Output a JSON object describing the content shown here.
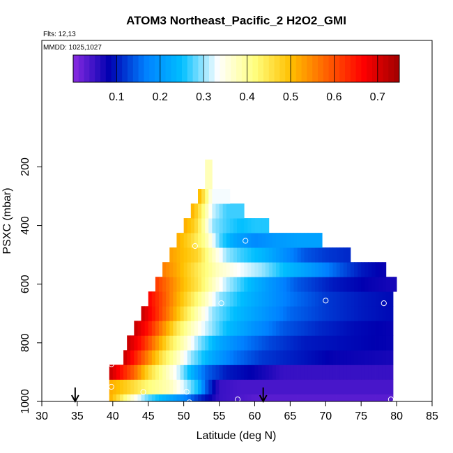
{
  "chart_data": {
    "type": "heatmap",
    "title": "ATOM3 Northeast_Pacific_2 H2O2_GMI",
    "annotations": [
      "Flts: 12,13",
      "MMDD: 1025,1027"
    ],
    "xlabel": "Latitude (deg N)",
    "ylabel": "PSXC (mbar)",
    "xlim": [
      30,
      85
    ],
    "ylim": [
      1000,
      0
    ],
    "x_ticks": [
      "30",
      "35",
      "40",
      "45",
      "50",
      "55",
      "60",
      "65",
      "70",
      "75",
      "80",
      "85"
    ],
    "y_ticks": [
      "200",
      "400",
      "600",
      "800",
      "1000"
    ],
    "colorbar": {
      "min": 0.0,
      "max": 0.75,
      "ticks": [
        "0.1",
        "0.2",
        "0.3",
        "0.4",
        "0.5",
        "0.6",
        "0.7"
      ],
      "colors": [
        "#8a2be2",
        "#0000b0",
        "#0080ff",
        "#00bfff",
        "#ffffff",
        "#ffff80",
        "#ffc000",
        "#ff6000",
        "#ff0000",
        "#a00000"
      ]
    },
    "cell_height_mbar": 50,
    "cell_width_deg": 0.5,
    "rows": [
      {
        "p": 1000,
        "lat_min": 39.5,
        "lat_max": 79,
        "values_at": [
          [
            39.5,
            0.52
          ],
          [
            41,
            0.45
          ],
          [
            43,
            0.35
          ],
          [
            45,
            0.28
          ],
          [
            48,
            0.22
          ],
          [
            50,
            0.18
          ],
          [
            52,
            0.12
          ],
          [
            55,
            0.05
          ],
          [
            60,
            0.03
          ],
          [
            79,
            0.03
          ]
        ]
      },
      {
        "p": 950,
        "lat_min": 39.5,
        "lat_max": 79,
        "values_at": [
          [
            39.5,
            0.52
          ],
          [
            42,
            0.48
          ],
          [
            45,
            0.42
          ],
          [
            48,
            0.38
          ],
          [
            50,
            0.32
          ],
          [
            52,
            0.25
          ],
          [
            53,
            0.15
          ],
          [
            55,
            0.05
          ],
          [
            58,
            0.04
          ],
          [
            79,
            0.04
          ]
        ]
      },
      {
        "p": 900,
        "lat_min": 39.5,
        "lat_max": 79,
        "values_at": [
          [
            39.5,
            0.72
          ],
          [
            41,
            0.66
          ],
          [
            43,
            0.58
          ],
          [
            45,
            0.47
          ],
          [
            47,
            0.4
          ],
          [
            49,
            0.33
          ],
          [
            51,
            0.24
          ],
          [
            53,
            0.15
          ],
          [
            56,
            0.1
          ],
          [
            60,
            0.08
          ],
          [
            64,
            0.05
          ],
          [
            79,
            0.05
          ]
        ]
      },
      {
        "p": 850,
        "lat_min": 41.5,
        "lat_max": 79,
        "values_at": [
          [
            41.5,
            0.72
          ],
          [
            43,
            0.65
          ],
          [
            45,
            0.55
          ],
          [
            47,
            0.45
          ],
          [
            49,
            0.38
          ],
          [
            51,
            0.3
          ],
          [
            54,
            0.22
          ],
          [
            57,
            0.16
          ],
          [
            61,
            0.12
          ],
          [
            66,
            0.1
          ],
          [
            71,
            0.08
          ],
          [
            79,
            0.07
          ]
        ]
      },
      {
        "p": 800,
        "lat_min": 42,
        "lat_max": 79,
        "values_at": [
          [
            42,
            0.72
          ],
          [
            44,
            0.65
          ],
          [
            46,
            0.55
          ],
          [
            48,
            0.45
          ],
          [
            50,
            0.38
          ],
          [
            52,
            0.3
          ],
          [
            55,
            0.22
          ],
          [
            58,
            0.17
          ],
          [
            62,
            0.13
          ],
          [
            67,
            0.1
          ],
          [
            73,
            0.09
          ],
          [
            79,
            0.08
          ]
        ]
      },
      {
        "p": 750,
        "lat_min": 43,
        "lat_max": 79,
        "values_at": [
          [
            43,
            0.72
          ],
          [
            45,
            0.65
          ],
          [
            47,
            0.55
          ],
          [
            49,
            0.45
          ],
          [
            51,
            0.38
          ],
          [
            53,
            0.32
          ],
          [
            56,
            0.25
          ],
          [
            60,
            0.19
          ],
          [
            64,
            0.14
          ],
          [
            69,
            0.11
          ],
          [
            74,
            0.09
          ],
          [
            79,
            0.08
          ]
        ]
      },
      {
        "p": 700,
        "lat_min": 44,
        "lat_max": 79,
        "values_at": [
          [
            44,
            0.72
          ],
          [
            46,
            0.64
          ],
          [
            48,
            0.55
          ],
          [
            50,
            0.46
          ],
          [
            52,
            0.38
          ],
          [
            54,
            0.3
          ],
          [
            57,
            0.25
          ],
          [
            61,
            0.2
          ],
          [
            65,
            0.15
          ],
          [
            70,
            0.12
          ],
          [
            75,
            0.1
          ],
          [
            79,
            0.09
          ]
        ]
      },
      {
        "p": 650,
        "lat_min": 45,
        "lat_max": 79,
        "values_at": [
          [
            45,
            0.67
          ],
          [
            47,
            0.6
          ],
          [
            49,
            0.52
          ],
          [
            51,
            0.45
          ],
          [
            53,
            0.38
          ],
          [
            55,
            0.3
          ],
          [
            58,
            0.25
          ],
          [
            61,
            0.21
          ],
          [
            65,
            0.16
          ],
          [
            70,
            0.12
          ],
          [
            75,
            0.1
          ],
          [
            79,
            0.09
          ]
        ]
      },
      {
        "p": 600,
        "lat_min": 46,
        "lat_max": 79.5,
        "values_at": [
          [
            46,
            0.62
          ],
          [
            48,
            0.56
          ],
          [
            50,
            0.5
          ],
          [
            52,
            0.45
          ],
          [
            54,
            0.38
          ],
          [
            56,
            0.31
          ],
          [
            59,
            0.25
          ],
          [
            62,
            0.2
          ],
          [
            66,
            0.14
          ],
          [
            71,
            0.1
          ],
          [
            76,
            0.08
          ],
          [
            79.5,
            0.07
          ]
        ]
      },
      {
        "p": 550,
        "lat_min": 47,
        "lat_max": 78,
        "values_at": [
          [
            47,
            0.56
          ],
          [
            49,
            0.52
          ],
          [
            51,
            0.47
          ],
          [
            53,
            0.42
          ],
          [
            55,
            0.37
          ],
          [
            58,
            0.33
          ],
          [
            61,
            0.3
          ],
          [
            64,
            0.25
          ],
          [
            68,
            0.2
          ],
          [
            72,
            0.14
          ],
          [
            75,
            0.1
          ],
          [
            78,
            0.08
          ]
        ]
      },
      {
        "p": 500,
        "lat_min": 48,
        "lat_max": 73,
        "values_at": [
          [
            48,
            0.53
          ],
          [
            50,
            0.5
          ],
          [
            52,
            0.47
          ],
          [
            54,
            0.38
          ],
          [
            56,
            0.3
          ],
          [
            58,
            0.27
          ],
          [
            61,
            0.24
          ],
          [
            64,
            0.19
          ],
          [
            67,
            0.14
          ],
          [
            70,
            0.12
          ],
          [
            73,
            0.11
          ]
        ]
      },
      {
        "p": 450,
        "lat_min": 49,
        "lat_max": 69,
        "values_at": [
          [
            49,
            0.52
          ],
          [
            51,
            0.47
          ],
          [
            53,
            0.4
          ],
          [
            55,
            0.28
          ],
          [
            57,
            0.22
          ],
          [
            60,
            0.18
          ],
          [
            63,
            0.2
          ],
          [
            66,
            0.21
          ],
          [
            69,
            0.21
          ]
        ]
      },
      {
        "p": 400,
        "lat_min": 50,
        "lat_max": 61.5,
        "values_at": [
          [
            50,
            0.52
          ],
          [
            51.5,
            0.48
          ],
          [
            52.5,
            0.42
          ],
          [
            54,
            0.3
          ],
          [
            56,
            0.27
          ],
          [
            58,
            0.25
          ],
          [
            60,
            0.26
          ],
          [
            61.5,
            0.26
          ]
        ]
      },
      {
        "p": 350,
        "lat_min": 51,
        "lat_max": 58,
        "values_at": [
          [
            51,
            0.52
          ],
          [
            52,
            0.47
          ],
          [
            53,
            0.4
          ],
          [
            54,
            0.32
          ],
          [
            56,
            0.27
          ],
          [
            58,
            0.27
          ]
        ]
      },
      {
        "p": 300,
        "lat_min": 52,
        "lat_max": 56,
        "values_at": [
          [
            52,
            0.52
          ],
          [
            53,
            0.44
          ],
          [
            54,
            0.33
          ],
          [
            55,
            0.33
          ],
          [
            56,
            0.33
          ]
        ]
      },
      {
        "p": 250,
        "lat_min": 53,
        "lat_max": 53.5,
        "values_at": [
          [
            53,
            0.38
          ],
          [
            53.5,
            0.38
          ]
        ]
      },
      {
        "p": 200,
        "lat_min": 53,
        "lat_max": 53.5,
        "values_at": [
          [
            53,
            0.38
          ],
          [
            53.5,
            0.38
          ]
        ]
      }
    ],
    "points": [
      [
        51.6,
        470
      ],
      [
        58.7,
        452
      ],
      [
        55.3,
        665
      ],
      [
        70.0,
        656
      ],
      [
        78.2,
        665
      ],
      [
        80.0,
        565
      ],
      [
        39.8,
        873
      ],
      [
        39.8,
        950
      ],
      [
        44.3,
        968
      ],
      [
        50.4,
        967
      ],
      [
        50.8,
        1003
      ],
      [
        57.6,
        993
      ],
      [
        79.2,
        993
      ]
    ],
    "arrows_at_lat": [
      34.7,
      61.2
    ]
  }
}
